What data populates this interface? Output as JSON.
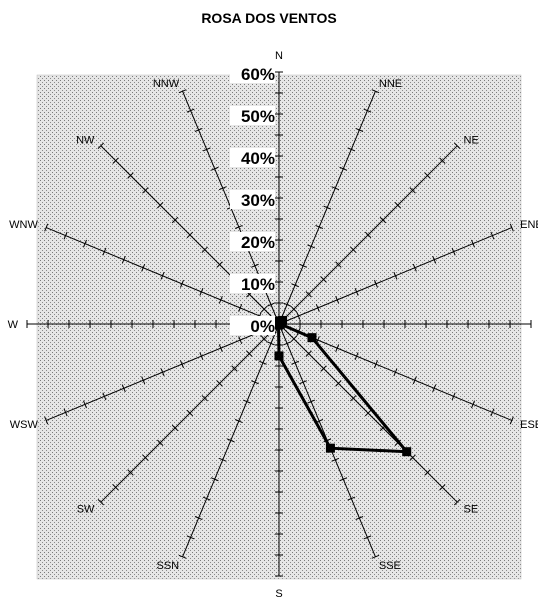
{
  "chart_data": {
    "type": "radar",
    "title": "ROSA DOS VENTOS",
    "directions": [
      "N",
      "NNE",
      "NE",
      "ENE",
      "E",
      "ESE",
      "SE",
      "SSE",
      "S",
      "SSN",
      "SW",
      "WSW",
      "W",
      "WNW",
      "NW",
      "NNW"
    ],
    "radial_ticks": [
      "0%",
      "10%",
      "20%",
      "30%",
      "40%",
      "50%",
      "60%"
    ],
    "rlim": [
      0,
      60
    ],
    "unit": "%",
    "series": [
      {
        "values": [
          0.6,
          0.8,
          1.2,
          0.6,
          0.3,
          8.5,
          43,
          32,
          7.6,
          0.3,
          0.2,
          0.1,
          0.1,
          0.1,
          0.2,
          0.3
        ],
        "color": "#000000"
      }
    ],
    "background": "stippled-gray",
    "grid": true
  }
}
